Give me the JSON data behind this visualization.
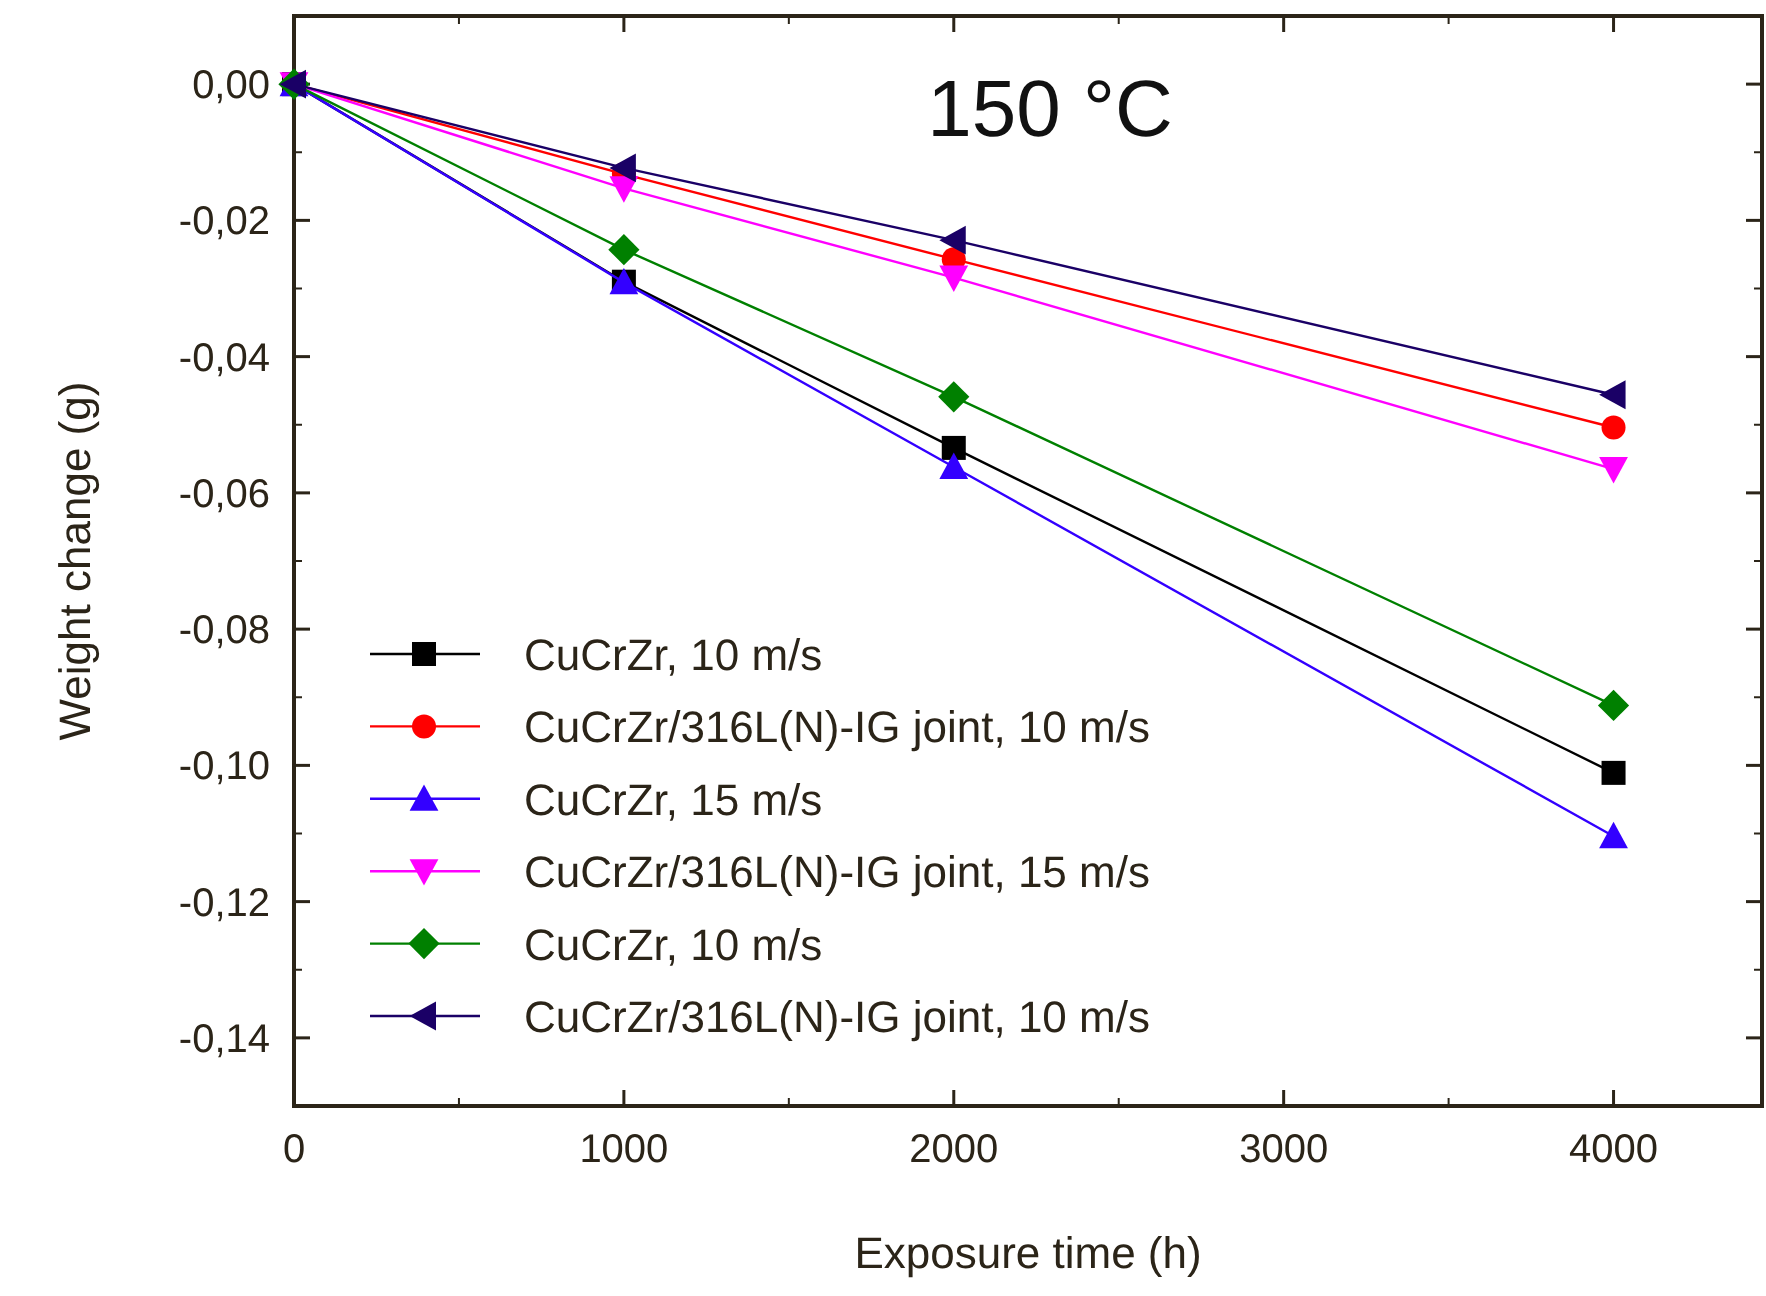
{
  "chart_data": {
    "type": "line",
    "title": "150 °C",
    "xlabel": "Exposure time (h)",
    "ylabel": "Weight change (g)",
    "x": [
      0,
      1000,
      2000,
      4000
    ],
    "xlim": [
      0,
      4450
    ],
    "xticks": [
      0,
      1000,
      2000,
      3000,
      4000
    ],
    "ylim": [
      -0.15,
      0.01
    ],
    "yticks": [
      {
        "value": 0,
        "label": "0,00"
      },
      {
        "value": -0.02,
        "label": "-0,02"
      },
      {
        "value": -0.04,
        "label": "-0,04"
      },
      {
        "value": -0.06,
        "label": "-0,06"
      },
      {
        "value": -0.08,
        "label": "-0,08"
      },
      {
        "value": -0.1,
        "label": "-0,10"
      },
      {
        "value": -0.12,
        "label": "-0,12"
      },
      {
        "value": -0.14,
        "label": "-0,14"
      }
    ],
    "grid": false,
    "legend": "bottom left",
    "line_style": "solid",
    "series": [
      {
        "name": "CuCrZr, 10 m/s",
        "color": "#000000",
        "marker": "square",
        "values": [
          0,
          -0.029,
          -0.0534,
          -0.1011
        ]
      },
      {
        "name": "CuCrZr/316L(N)-IG joint, 10 m/s",
        "color": "#ff0000",
        "marker": "circle",
        "values": [
          0,
          -0.0132,
          -0.0257,
          -0.0504
        ]
      },
      {
        "name": "CuCrZr, 15 m/s",
        "color": "#3300ff",
        "marker": "triangle",
        "values": [
          0,
          -0.0291,
          -0.0562,
          -0.1104
        ]
      },
      {
        "name": "CuCrZr/316L(N)-IG joint, 15 m/s",
        "color": "#ff00ff",
        "marker": "triangle-down",
        "values": [
          0,
          -0.0153,
          -0.0284,
          -0.0565
        ]
      },
      {
        "name": "CuCrZr, 10 m/s",
        "color": "#008000",
        "marker": "diamond",
        "values": [
          0,
          -0.0243,
          -0.0459,
          -0.0912
        ]
      },
      {
        "name": "CuCrZr/316L(N)-IG joint, 10 m/s",
        "color": "#1a0066",
        "marker": "triangle-left",
        "values": [
          0,
          -0.0123,
          -0.0229,
          -0.0456
        ]
      }
    ]
  }
}
